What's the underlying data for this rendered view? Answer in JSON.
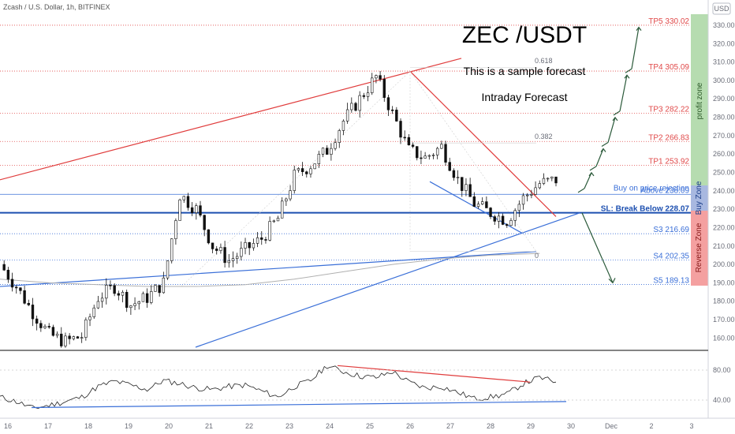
{
  "header": {
    "symbol": "Zcash / U.S. Dollar, 1h, BITFINEX",
    "currency": "USD"
  },
  "annotations": {
    "title": "ZEC /USDT",
    "subtitle": "This is a sample forecast",
    "subtitle2": "Intraday Forecast",
    "fib_618": "0.618",
    "fib_382": "0.382",
    "fib_0": "0"
  },
  "zones": {
    "profit": "profit zone",
    "buy": "Buy Zone",
    "reverse": "Reverse Zone",
    "profit_color": "#b6dcb0",
    "buy_color": "#a8b8e0",
    "reverse_color": "#f4a0a0"
  },
  "levels": [
    {
      "label": "TP5 330.02",
      "value": 330.02,
      "color": "#e04848"
    },
    {
      "label": "TP4 305.09",
      "value": 305.09,
      "color": "#e04848"
    },
    {
      "label": "TP3 282.22",
      "value": 282.22,
      "color": "#e04848"
    },
    {
      "label": "TP2 266.83",
      "value": 266.83,
      "color": "#e04848"
    },
    {
      "label": "TP1 253.92",
      "value": 253.92,
      "color": "#e04848"
    },
    {
      "label": "Buy on price rejection",
      "value": 240.2,
      "color": "#3a6fd8"
    },
    {
      "label": "Above 238.09",
      "value": 238.09,
      "color": "#3a6fd8"
    },
    {
      "label": "SL: Break Below 228.07",
      "value": 228.07,
      "color": "#1c4fb0"
    },
    {
      "label": "S3 216.69",
      "value": 216.69,
      "color": "#3a6fd8"
    },
    {
      "label": "S4 202.35",
      "value": 202.35,
      "color": "#3a6fd8"
    },
    {
      "label": "S5 189.13",
      "value": 189.13,
      "color": "#3a6fd8"
    }
  ],
  "chart_data": {
    "type": "candlestick",
    "price_axis": {
      "ylim": [
        155,
        336
      ],
      "ticks": [
        160,
        170,
        180,
        190,
        200,
        210,
        220,
        230,
        240,
        250,
        260,
        270,
        280,
        290,
        300,
        310,
        320,
        330
      ]
    },
    "rsi_axis": {
      "ylim": [
        20,
        100
      ],
      "ticks": [
        40,
        80
      ],
      "tick_labels": [
        "40.00",
        "80.00"
      ]
    },
    "x_axis": {
      "tick_labels": [
        "16",
        "17",
        "18",
        "19",
        "20",
        "21",
        "22",
        "23",
        "24",
        "25",
        "26",
        "27",
        "28",
        "29",
        "30",
        "Dec",
        "2",
        "3"
      ]
    },
    "price_path": [
      [
        0,
        200
      ],
      [
        1,
        188
      ],
      [
        2,
        174
      ],
      [
        3,
        162
      ],
      [
        4,
        158
      ],
      [
        5,
        161
      ],
      [
        6,
        182
      ],
      [
        7,
        188
      ],
      [
        8,
        178
      ],
      [
        9,
        182
      ],
      [
        10,
        190
      ],
      [
        11,
        238
      ],
      [
        12,
        230
      ],
      [
        13,
        210
      ],
      [
        14,
        202
      ],
      [
        15,
        208
      ],
      [
        16,
        214
      ],
      [
        17,
        225
      ],
      [
        18,
        248
      ],
      [
        19,
        254
      ],
      [
        20,
        262
      ],
      [
        21,
        278
      ],
      [
        22,
        290
      ],
      [
        23,
        302
      ],
      [
        24,
        282
      ],
      [
        25,
        262
      ],
      [
        26,
        258
      ],
      [
        27,
        264
      ],
      [
        28,
        246
      ],
      [
        29,
        233
      ],
      [
        30,
        228
      ],
      [
        31,
        224
      ],
      [
        32,
        236
      ],
      [
        33,
        244
      ],
      [
        34,
        246
      ]
    ],
    "rsi_path": [
      [
        0,
        44
      ],
      [
        1,
        38
      ],
      [
        2,
        29
      ],
      [
        3,
        33
      ],
      [
        4,
        38
      ],
      [
        5,
        44
      ],
      [
        6,
        58
      ],
      [
        7,
        65
      ],
      [
        8,
        60
      ],
      [
        9,
        54
      ],
      [
        10,
        66
      ],
      [
        11,
        62
      ],
      [
        12,
        56
      ],
      [
        13,
        54
      ],
      [
        14,
        58
      ],
      [
        15,
        60
      ],
      [
        16,
        52
      ],
      [
        17,
        44
      ],
      [
        18,
        58
      ],
      [
        19,
        66
      ],
      [
        20,
        86
      ],
      [
        21,
        78
      ],
      [
        22,
        72
      ],
      [
        23,
        70
      ],
      [
        24,
        78
      ],
      [
        25,
        64
      ],
      [
        26,
        56
      ],
      [
        27,
        58
      ],
      [
        28,
        50
      ],
      [
        29,
        42
      ],
      [
        30,
        44
      ],
      [
        31,
        48
      ],
      [
        32,
        62
      ],
      [
        33,
        70
      ],
      [
        34,
        64
      ]
    ],
    "forecast_path": [
      240,
      252,
      265,
      282,
      305,
      331
    ],
    "ma_path": [
      [
        0,
        192
      ],
      [
        3,
        190
      ],
      [
        6,
        189
      ],
      [
        9,
        188
      ],
      [
        12,
        188
      ],
      [
        15,
        189
      ],
      [
        18,
        192
      ],
      [
        21,
        196
      ],
      [
        24,
        200
      ],
      [
        27,
        203
      ],
      [
        30,
        205
      ],
      [
        33,
        206
      ]
    ],
    "down_forecast": [
      228,
      190
    ]
  }
}
